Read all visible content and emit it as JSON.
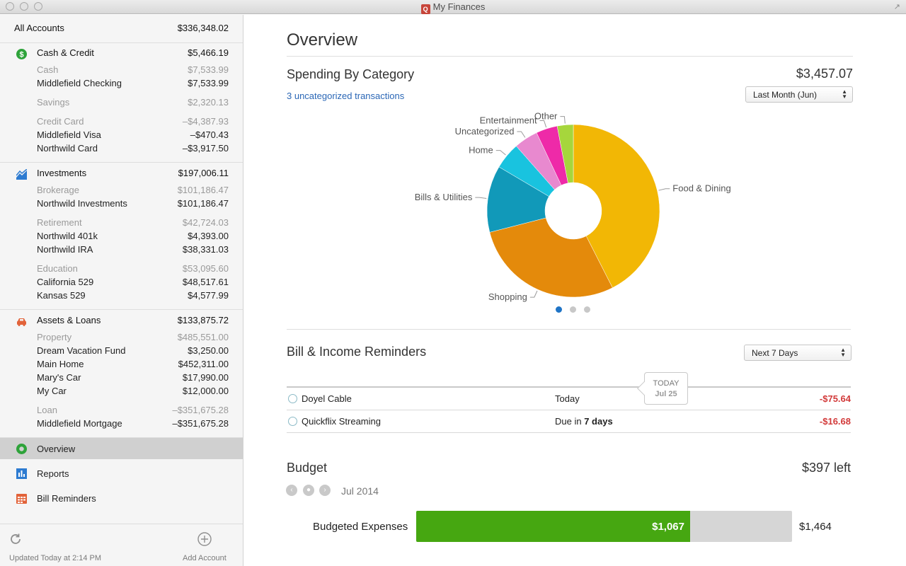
{
  "window": {
    "title": "My Finances"
  },
  "sidebar": {
    "all_accounts": {
      "label": "All Accounts",
      "amount": "$336,348.02"
    },
    "groups": [
      {
        "label": "Cash & Credit",
        "amount": "$5,466.19",
        "icon": "dollar-icon",
        "subgroups": [
          {
            "label": "Cash",
            "amount": "$7,533.99",
            "items": [
              {
                "label": "Middlefield Checking",
                "amount": "$7,533.99"
              }
            ]
          },
          {
            "label": "Savings",
            "amount": "$2,320.13",
            "items": []
          },
          {
            "label": "Credit Card",
            "amount": "–$4,387.93",
            "items": [
              {
                "label": "Middlefield Visa",
                "amount": "–$470.43"
              },
              {
                "label": "Northwild Card",
                "amount": "–$3,917.50"
              }
            ]
          }
        ]
      },
      {
        "label": "Investments",
        "amount": "$197,006.11",
        "icon": "chart-icon",
        "subgroups": [
          {
            "label": "Brokerage",
            "amount": "$101,186.47",
            "items": [
              {
                "label": "Northwild Investments",
                "amount": "$101,186.47"
              }
            ]
          },
          {
            "label": "Retirement",
            "amount": "$42,724.03",
            "items": [
              {
                "label": "Northwild 401k",
                "amount": "$4,393.00"
              },
              {
                "label": "Northwild IRA",
                "amount": "$38,331.03"
              }
            ]
          },
          {
            "label": "Education",
            "amount": "$53,095.60",
            "items": [
              {
                "label": "California 529",
                "amount": "$48,517.61"
              },
              {
                "label": "Kansas 529",
                "amount": "$4,577.99"
              }
            ]
          }
        ]
      },
      {
        "label": "Assets & Loans",
        "amount": "$133,875.72",
        "icon": "car-icon",
        "subgroups": [
          {
            "label": "Property",
            "amount": "$485,551.00",
            "items": [
              {
                "label": "Dream Vacation Fund",
                "amount": "$3,250.00"
              },
              {
                "label": "Main Home",
                "amount": "$452,311.00"
              },
              {
                "label": "Mary's Car",
                "amount": "$17,990.00"
              },
              {
                "label": "My Car",
                "amount": "$12,000.00"
              }
            ]
          },
          {
            "label": "Loan",
            "amount": "–$351,675.28",
            "items": [
              {
                "label": "Middlefield Mortgage",
                "amount": "–$351,675.28"
              }
            ]
          }
        ]
      }
    ],
    "nav": [
      {
        "label": "Overview",
        "icon": "overview-icon",
        "active": true
      },
      {
        "label": "Reports",
        "icon": "reports-icon",
        "active": false
      },
      {
        "label": "Bill Reminders",
        "icon": "calendar-icon",
        "active": false
      }
    ],
    "footer": {
      "updated": "Updated Today at 2:14 PM",
      "add_account": "Add Account"
    }
  },
  "main": {
    "title": "Overview",
    "spending": {
      "title": "Spending By Category",
      "total": "$3,457.07",
      "uncategorized_link": "3 uncategorized transactions",
      "period": "Last Month (Jun)",
      "page_dots": 3,
      "active_dot": 0
    },
    "reminders": {
      "title": "Bill & Income Reminders",
      "period": "Next 7 Days",
      "today_label": "TODAY",
      "today_date": "Jul 25",
      "rows": [
        {
          "name": "Doyel Cable",
          "due_prefix": "Today",
          "due_bold": "",
          "amount": "-$75.64"
        },
        {
          "name": "Quickflix Streaming",
          "due_prefix": "Due in ",
          "due_bold": "7 days",
          "amount": "-$16.68"
        }
      ]
    },
    "budget": {
      "title": "Budget",
      "left": "$397 left",
      "month": "Jul 2014",
      "row_label": "Budgeted Expenses",
      "spent": "$1,067",
      "total": "$1,464",
      "spent_value": 1067,
      "total_value": 1464
    }
  },
  "chart_data": {
    "type": "pie",
    "title": "Spending By Category",
    "donut": true,
    "slices": [
      {
        "label": "Food & Dining",
        "value": 42.5,
        "color": "#f2b705"
      },
      {
        "label": "Shopping",
        "value": 28.5,
        "color": "#e48a0b"
      },
      {
        "label": "Bills & Utilities",
        "value": 12.5,
        "color": "#1199b9"
      },
      {
        "label": "Home",
        "value": 5.0,
        "color": "#19c3df"
      },
      {
        "label": "Uncategorized",
        "value": 4.5,
        "color": "#e889cf"
      },
      {
        "label": "Entertainment",
        "value": 4.0,
        "color": "#ee2aa8"
      },
      {
        "label": "Other",
        "value": 3.0,
        "color": "#a6d63c"
      }
    ]
  }
}
